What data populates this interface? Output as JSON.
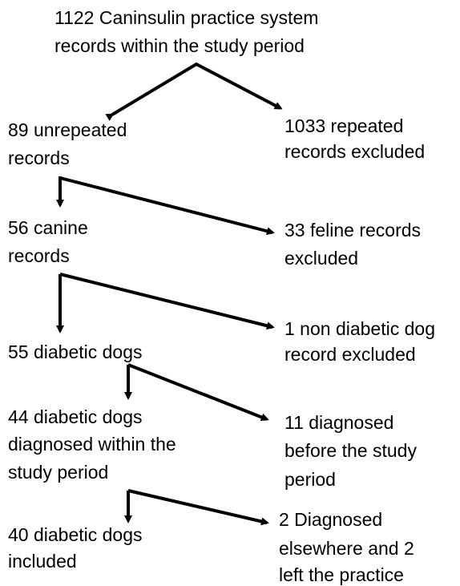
{
  "nodes": [
    {
      "lines": [
        "1122 Caninsulin practice system",
        "records within the study period"
      ]
    },
    {
      "lines": [
        "89 unrepeated",
        "records"
      ]
    },
    {
      "lines": [
        "1033 repeated",
        "records excluded"
      ]
    },
    {
      "lines": [
        "56 canine",
        "records"
      ]
    },
    {
      "lines": [
        "33 feline records",
        "excluded"
      ]
    },
    {
      "lines": [
        "55 diabetic dogs"
      ]
    },
    {
      "lines": [
        "1 non diabetic dog",
        "record excluded"
      ]
    },
    {
      "lines": [
        "44 diabetic dogs",
        "diagnosed within the",
        "study period"
      ]
    },
    {
      "lines": [
        "11 diagnosed",
        "before the study",
        "period"
      ]
    },
    {
      "lines": [
        "40 diabetic dogs",
        "included"
      ]
    },
    {
      "lines": [
        "2  Diagnosed",
        "elsewhere and 2",
        "left the practice"
      ]
    }
  ]
}
